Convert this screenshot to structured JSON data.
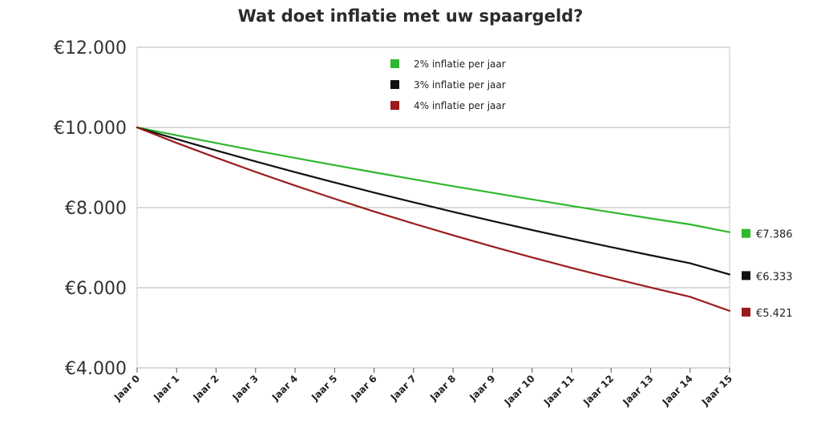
{
  "chart_data": {
    "type": "line",
    "title": "Wat doet inflatie met uw spaargeld?",
    "xlabel": "",
    "ylabel": "",
    "categories": [
      "Jaar 0",
      "Jaar 1",
      "Jaar 2",
      "Jaar 3",
      "Jaar 4",
      "Jaar 5",
      "Jaar 6",
      "Jaar 7",
      "Jaar 8",
      "Jaar 9",
      "Jaar 10",
      "Jaar 11",
      "Jaar 12",
      "Jaar 13",
      "Jaar 14",
      "Jaar 15"
    ],
    "ylim": [
      4000,
      12000
    ],
    "yticks": [
      4000,
      6000,
      8000,
      10000,
      12000
    ],
    "ytick_labels": [
      "€4.000",
      "€6.000",
      "€8.000",
      "€10.000",
      "€12.000"
    ],
    "grid": true,
    "legend_position": "top-center",
    "series": [
      {
        "name": "2% inflatie per jaar",
        "color": "#2eb82e",
        "values": [
          10000,
          9804,
          9612,
          9423,
          9238,
          9057,
          8880,
          8706,
          8535,
          8368,
          8203,
          8043,
          7885,
          7730,
          7579,
          7386
        ],
        "end_label": "€7.386"
      },
      {
        "name": "3% inflatie per jaar",
        "color": "#111111",
        "values": [
          10000,
          9709,
          9426,
          9151,
          8885,
          8626,
          8375,
          8131,
          7894,
          7664,
          7441,
          7224,
          7014,
          6810,
          6611,
          6333
        ],
        "end_label": "€6.333"
      },
      {
        "name": "4% inflatie per jaar",
        "color": "#9b1b1b",
        "values": [
          10000,
          9615,
          9246,
          8890,
          8548,
          8219,
          7903,
          7599,
          7307,
          7026,
          6756,
          6496,
          6246,
          6006,
          5775,
          5421
        ],
        "end_label": "€5.421"
      }
    ]
  }
}
